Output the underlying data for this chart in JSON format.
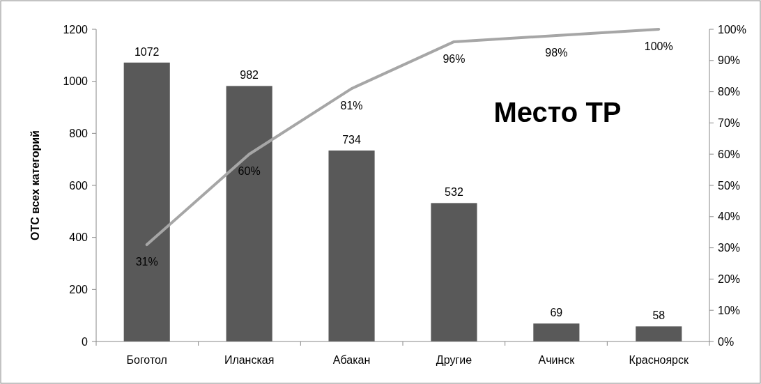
{
  "chart_data": {
    "type": "bar",
    "title": "Место ТР",
    "ylabel": "ОТС всех категорий",
    "categories": [
      "Боготол",
      "Иланская",
      "Абакан",
      "Другие",
      "Ачинск",
      "Красноярск"
    ],
    "series": [
      {
        "color": "#595959",
        "values": [
          1072,
          982,
          734,
          532,
          69,
          58
        ],
        "value_labels": [
          "1072",
          "982",
          "734",
          "532",
          "69",
          "58"
        ]
      },
      {
        "type": "line",
        "axis": "y2",
        "color": "#a6a6a6",
        "values": [
          31,
          60,
          81,
          96,
          98,
          100
        ],
        "value_labels": [
          "31%",
          "60%",
          "81%",
          "96%",
          "98%",
          "100%"
        ]
      }
    ],
    "ylim": [
      0,
      1200
    ],
    "yticks": [
      0,
      200,
      400,
      600,
      800,
      1000,
      1200
    ],
    "y2lim": [
      0,
      100
    ],
    "y2ticks": [
      {
        "value": 0,
        "label": "0%"
      },
      {
        "value": 10,
        "label": "10%"
      },
      {
        "value": 20,
        "label": "20%"
      },
      {
        "value": 30,
        "label": "30%"
      },
      {
        "value": 40,
        "label": "40%"
      },
      {
        "value": 50,
        "label": "50%"
      },
      {
        "value": 60,
        "label": "60%"
      },
      {
        "value": 70,
        "label": "70%"
      },
      {
        "value": 80,
        "label": "80%"
      },
      {
        "value": 90,
        "label": "90%"
      },
      {
        "value": 100,
        "label": "100%"
      }
    ],
    "grid": false,
    "marker": "none",
    "line_style": "solid"
  }
}
